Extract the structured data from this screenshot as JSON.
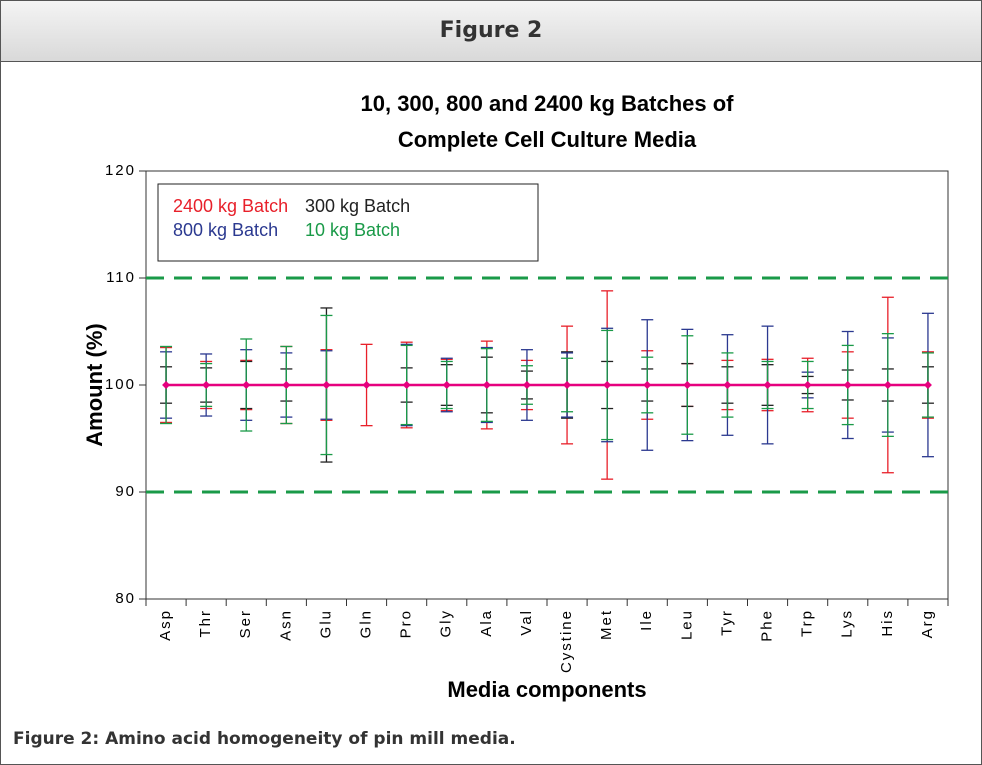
{
  "header": {
    "title": "Figure 2"
  },
  "caption": "Figure 2: Amino acid homogeneity of pin mill media.",
  "chart_data": {
    "type": "errorbar",
    "title": [
      "10, 300, 800 and 2400 kg Batches of",
      "Complete Cell Culture Media"
    ],
    "x_label": "Media components",
    "y_label": "Amount (%)",
    "categories": [
      "Asp",
      "Thr",
      "Ser",
      "Asn",
      "Glu",
      "Gln",
      "Pro",
      "Gly",
      "Ala",
      "Val",
      "Cystine",
      "Met",
      "Ile",
      "Leu",
      "Tyr",
      "Phe",
      "Trp",
      "Lys",
      "His",
      "Arg"
    ],
    "series": [
      {
        "name": "2400 kg Batch",
        "color": "#e8202a",
        "values": [
          100,
          100,
          100,
          100,
          100,
          100,
          100,
          100,
          100,
          100,
          100,
          100,
          100,
          100,
          100,
          100,
          100,
          100,
          100,
          100
        ],
        "errors": [
          3.5,
          2.2,
          2.3,
          3.6,
          3.3,
          3.8,
          4.0,
          2.4,
          4.1,
          2.3,
          5.5,
          8.8,
          3.2,
          2.0,
          2.3,
          2.4,
          2.5,
          3.1,
          8.2,
          3.1
        ]
      },
      {
        "name": "300 kg Batch",
        "color": "#222222",
        "values": [
          100,
          100,
          100,
          100,
          100,
          null,
          100,
          100,
          100,
          100,
          100,
          100,
          100,
          100,
          100,
          100,
          100,
          100,
          100,
          100
        ],
        "errors": [
          1.7,
          1.6,
          2.2,
          1.5,
          7.2,
          null,
          1.6,
          1.9,
          2.6,
          1.3,
          3.1,
          2.2,
          1.5,
          2.0,
          1.7,
          1.9,
          0.8,
          1.4,
          1.5,
          1.7
        ]
      },
      {
        "name": "800 kg Batch",
        "color": "#2b3990",
        "values": [
          100,
          100,
          100,
          100,
          100,
          null,
          100,
          100,
          100,
          100,
          100,
          100,
          100,
          100,
          100,
          100,
          100,
          100,
          100,
          100
        ],
        "errors": [
          3.1,
          2.9,
          3.3,
          3.0,
          3.2,
          null,
          3.8,
          2.5,
          3.5,
          3.3,
          3.0,
          5.3,
          6.1,
          5.2,
          4.7,
          5.5,
          1.2,
          5.0,
          4.4,
          6.7
        ]
      },
      {
        "name": "10 kg Batch",
        "color": "#1a9a48",
        "values": [
          100,
          100,
          100,
          100,
          100,
          null,
          100,
          100,
          100,
          100,
          100,
          100,
          100,
          100,
          100,
          100,
          100,
          100,
          100,
          100
        ],
        "errors": [
          3.6,
          2.0,
          4.3,
          3.6,
          6.5,
          null,
          3.7,
          2.2,
          3.4,
          1.8,
          2.5,
          5.1,
          2.6,
          4.6,
          3.0,
          2.2,
          2.2,
          3.7,
          4.8,
          3.0
        ]
      }
    ],
    "mean_line_color": "#e6007e",
    "reference_lines": [
      110,
      90
    ],
    "reference_color": "#1a9a48",
    "ylim": [
      80,
      120
    ],
    "yticks": [
      80,
      90,
      100,
      110,
      120
    ]
  }
}
